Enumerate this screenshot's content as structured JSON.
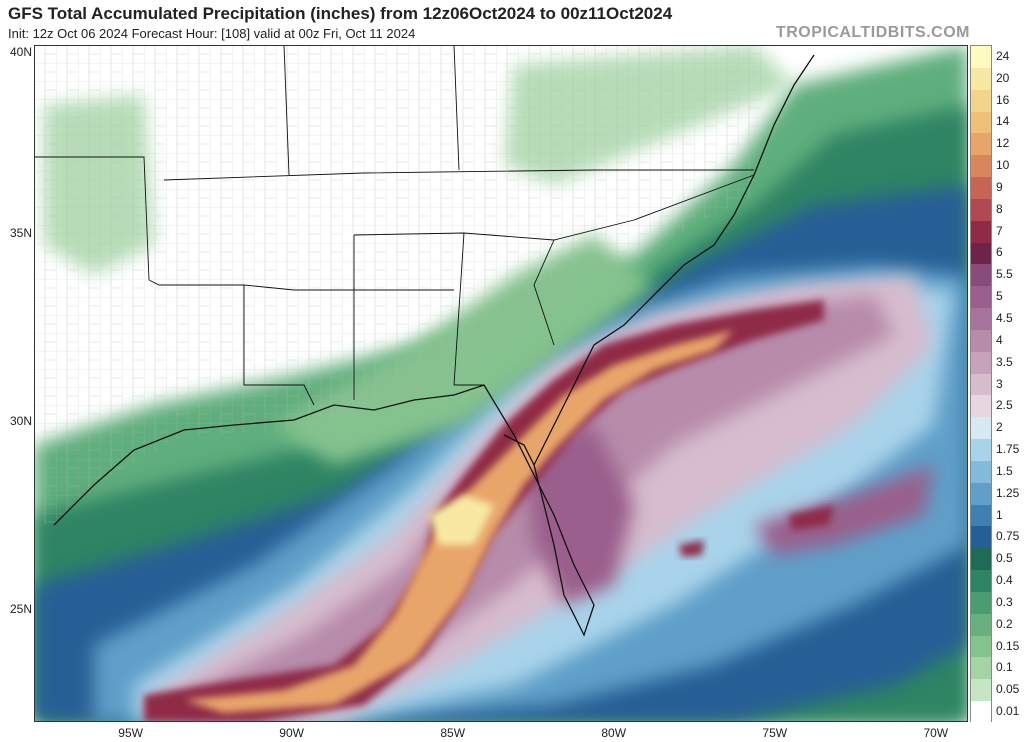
{
  "header": {
    "title": "GFS Total Accumulated Precipitation (inches) from 12z06Oct2024 to 00z11Oct2024",
    "subtitle": "Init: 12z Oct 06 2024   Forecast Hour: [108]   valid at 00z Fri, Oct 11 2024",
    "brand": "TROPICALTIDBITS.COM"
  },
  "map": {
    "projection": "plate-carree",
    "lon_range": [
      -98,
      -69
    ],
    "lat_range": [
      22,
      40
    ],
    "lat_labels": [
      "40N",
      "35N",
      "30N",
      "25N"
    ],
    "lat_values": [
      40,
      35,
      30,
      25
    ],
    "lon_labels": [
      "95W",
      "90W",
      "85W",
      "80W",
      "75W",
      "70W"
    ],
    "lon_values": [
      -95,
      -90,
      -85,
      -80,
      -75,
      -70
    ]
  },
  "colorbar": {
    "units": "inches",
    "levels": [
      "24",
      "20",
      "16",
      "14",
      "12",
      "10",
      "9",
      "8",
      "7",
      "6",
      "5.5",
      "5",
      "4.5",
      "4",
      "3.5",
      "3",
      "2.5",
      "2",
      "1.75",
      "1.5",
      "1.25",
      "1",
      "0.75",
      "0.5",
      "0.4",
      "0.3",
      "0.2",
      "0.15",
      "0.1",
      "0.05",
      "0.01"
    ],
    "colors": [
      "#fdfbc0",
      "#f7e9a3",
      "#f2d48a",
      "#efc078",
      "#e8a56a",
      "#d9865e",
      "#c86455",
      "#b24852",
      "#8f2b47",
      "#6e2348",
      "#8a4a7a",
      "#9a5f8c",
      "#a8749b",
      "#b78baa",
      "#c7a3bb",
      "#d6bccd",
      "#e6d6e0",
      "#d8e8f4",
      "#a9d3ea",
      "#84bbdb",
      "#5f9fc8",
      "#3f7fb2",
      "#265f95",
      "#1f6a58",
      "#2f8463",
      "#4a9c72",
      "#68b080",
      "#84c28e",
      "#a4d4a6",
      "#c4e6c3",
      "#ffffff"
    ]
  }
}
